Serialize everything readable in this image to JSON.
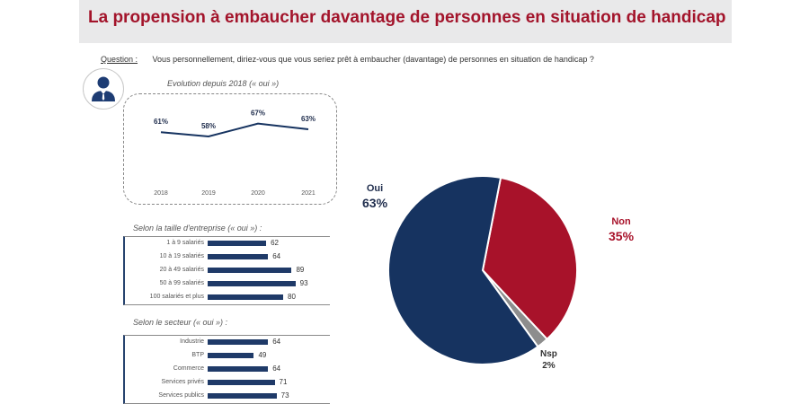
{
  "page": {
    "title": "La propension à embaucher davantage de personnes en situation de handicap",
    "question_label": "Question :",
    "question_text": "Vous personnellement, diriez-vous que vous seriez prêt à embaucher (davantage) de personnes en situation de handicap ?"
  },
  "colors": {
    "navy": "#163360",
    "red": "#a8122a",
    "grey": "#8d8d8d",
    "bar": "#1f3a68"
  },
  "icons": {
    "avatar": "business-person-icon"
  },
  "chart_data": [
    {
      "type": "line",
      "title": "Evolution depuis 2018 (« oui »)",
      "x": [
        "2018",
        "2019",
        "2020",
        "2021"
      ],
      "values": [
        61,
        58,
        67,
        63
      ],
      "labels": [
        "61%",
        "58%",
        "67%",
        "63%"
      ],
      "ylim": [
        50,
        75
      ]
    },
    {
      "type": "bar",
      "orientation": "horizontal",
      "title": "Selon la taille d'entreprise (« oui ») :",
      "categories": [
        "1 à 9 salariés",
        "10 à 19 salariés",
        "20 à 49 salariés",
        "50 à 99 salariés",
        "100 salariés et plus"
      ],
      "values": [
        62,
        64,
        89,
        93,
        80
      ],
      "xlim": [
        0,
        100
      ]
    },
    {
      "type": "bar",
      "orientation": "horizontal",
      "title": "Selon le secteur (« oui ») :",
      "categories": [
        "Industrie",
        "BTP",
        "Commerce",
        "Services privés",
        "Services publics"
      ],
      "values": [
        64,
        49,
        64,
        71,
        73
      ],
      "xlim": [
        0,
        100
      ]
    },
    {
      "type": "pie",
      "slices": [
        {
          "name": "Oui",
          "value": 63,
          "label": "63%",
          "color": "#163360"
        },
        {
          "name": "Non",
          "value": 35,
          "label": "35%",
          "color": "#a8122a"
        },
        {
          "name": "Nsp",
          "value": 2,
          "label": "2%",
          "color": "#8d8d8d"
        }
      ]
    }
  ]
}
